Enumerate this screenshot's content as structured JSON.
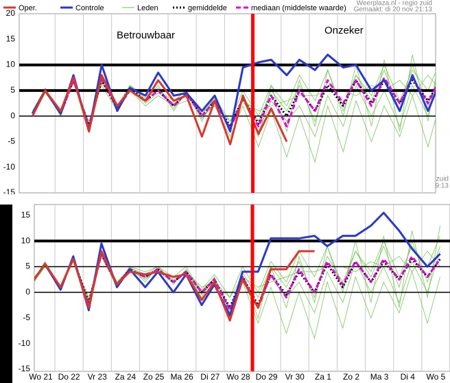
{
  "chart_data": [
    {
      "type": "line",
      "header": [
        "Weerplaza.nl - regio zuid",
        "Gemaakt: di 20 nov 21:13"
      ],
      "annotations": [
        "Betrouwbaar",
        "Onzeker"
      ],
      "legend": true,
      "x": [
        0.2,
        0.65,
        1.2,
        1.65,
        2.2,
        2.65,
        3.2,
        3.65,
        4.2,
        4.65,
        5.2,
        5.65,
        6.2,
        6.65,
        7.2,
        7.65,
        8.2,
        8.65,
        9.2,
        9.65,
        10.2,
        10.65,
        11.2,
        11.65,
        12.2,
        12.65,
        13.2,
        13.65,
        14.2,
        14.65
      ],
      "xlim": [
        -0.27,
        14.47
      ],
      "xgrid": [
        1,
        2,
        3,
        4,
        5,
        6,
        7,
        8,
        9,
        10,
        11,
        12,
        13,
        14
      ],
      "ylim": [
        -15,
        20
      ],
      "yticks": [
        20,
        15,
        10,
        5,
        0,
        -5,
        -10,
        -15
      ],
      "hlines": [
        10,
        5,
        0
      ],
      "bold_hlines": [
        10,
        5
      ],
      "vline": 8,
      "vline_color": "#ff0000",
      "members": {
        "name": "Leden",
        "color": "#6cbf4a",
        "values": [
          [
            1,
            5.5,
            0,
            7,
            -3,
            7,
            2,
            6,
            3,
            6,
            1,
            5,
            -1,
            4,
            -3,
            4,
            -4,
            6,
            -3,
            7,
            -2,
            9,
            0,
            10,
            -2,
            11,
            -3,
            12,
            -1,
            13
          ],
          [
            0,
            4.5,
            1,
            6.5,
            -1,
            6,
            1,
            5,
            2,
            4,
            2,
            3,
            1,
            2,
            -1,
            3,
            1,
            2,
            3,
            4,
            4,
            5,
            5,
            4,
            6,
            5,
            7,
            4,
            8,
            5
          ],
          [
            0.5,
            5,
            0,
            7.5,
            -2.5,
            8,
            1,
            6,
            4,
            5,
            3,
            5,
            0,
            2,
            -4,
            2,
            -6,
            1,
            -8,
            0,
            -9,
            2,
            -7,
            3,
            -5,
            2,
            -4,
            4,
            -6,
            3
          ],
          [
            0,
            4.8,
            0.8,
            6.8,
            -1.5,
            6.5,
            2,
            5.2,
            2.5,
            4.5,
            2.5,
            4,
            0.5,
            3.5,
            -1,
            5,
            0,
            6,
            2,
            8,
            3,
            9,
            1,
            8,
            4,
            10,
            3,
            9,
            5,
            11
          ],
          [
            1,
            5.2,
            0.2,
            7.2,
            -2,
            7.2,
            1.2,
            5.8,
            3.5,
            5.5,
            1.5,
            4.8,
            -0.5,
            2.5,
            -2,
            3,
            -3,
            3,
            -1,
            2,
            -4,
            4,
            -2,
            6,
            0,
            5,
            -2,
            6,
            0,
            8
          ],
          [
            0.5,
            5,
            0.6,
            7,
            -2.2,
            6.8,
            1.8,
            5.4,
            2.8,
            5.2,
            2.2,
            4.4,
            0.2,
            3.2,
            -2.5,
            3.8,
            -1,
            5,
            1,
            6,
            -1,
            7,
            2,
            8,
            3,
            9,
            1,
            10,
            2,
            9
          ]
        ]
      },
      "series": [
        {
          "name": "Oper.",
          "color": "#d8382c",
          "style": "solid",
          "values": [
            0,
            5,
            1,
            7.5,
            -3,
            8,
            2,
            5,
            3,
            7,
            3,
            4,
            -4,
            3,
            -5.5,
            4,
            -3.5,
            1.5,
            -5,
            null,
            null,
            null,
            null,
            null,
            null,
            null,
            null,
            null,
            null,
            null
          ]
        },
        {
          "name": "Controle",
          "color": "#2a38cc",
          "style": "solid",
          "values": [
            0.5,
            5,
            0.5,
            8,
            -3,
            10,
            1,
            5.5,
            4,
            8.5,
            4,
            4.5,
            1,
            4,
            -3,
            9.5,
            10.5,
            11,
            8,
            11,
            9,
            12,
            9.5,
            10,
            5,
            7,
            1,
            8,
            1,
            7
          ]
        },
        {
          "name": "gemiddelde",
          "color": "#000000",
          "style": "dotted",
          "values": [
            0.5,
            5,
            0.5,
            7,
            -2,
            7,
            1.5,
            5.5,
            3,
            5,
            2,
            4.5,
            0,
            3,
            -2,
            3.5,
            -1.5,
            4,
            0,
            5,
            1,
            6,
            2,
            7,
            2.5,
            7,
            2.5,
            7,
            3,
            7
          ]
        },
        {
          "name": "mediaan (middelste waarde)",
          "color": "#e000e0",
          "style": "dashed",
          "values": [
            0.5,
            5,
            0.5,
            7,
            -2,
            7.5,
            1.5,
            5,
            3,
            5,
            2,
            4.5,
            0,
            3,
            -2.5,
            3.5,
            -2,
            4,
            -2,
            5,
            1,
            7,
            2.5,
            7,
            2,
            7.5,
            2.5,
            7.5,
            2.5,
            7.5
          ]
        }
      ]
    },
    {
      "type": "line",
      "header": [
        "zuid",
        "9:13"
      ],
      "legend": false,
      "x": [
        0.2,
        0.65,
        1.2,
        1.65,
        2.2,
        2.65,
        3.2,
        3.65,
        4.2,
        4.65,
        5.2,
        5.65,
        6.2,
        6.65,
        7.2,
        7.65,
        8.2,
        8.65,
        9.2,
        9.65,
        10.2,
        10.65,
        11.2,
        11.65,
        12.2,
        12.65,
        13.2,
        13.65,
        14.2,
        14.65
      ],
      "xlim": [
        0.27,
        15
      ],
      "xgrid": [
        1,
        2,
        3,
        4,
        5,
        6,
        7,
        8,
        9,
        10,
        11,
        12,
        13,
        14
      ],
      "xticks": [
        {
          "value": 0.5,
          "label": "Wo 21"
        },
        {
          "value": 1.5,
          "label": "Do 22"
        },
        {
          "value": 2.5,
          "label": "Vr 23"
        },
        {
          "value": 3.5,
          "label": "Za 24"
        },
        {
          "value": 4.5,
          "label": "Zo 25"
        },
        {
          "value": 5.5,
          "label": "Ma 26"
        },
        {
          "value": 6.5,
          "label": "Di 27"
        },
        {
          "value": 7.5,
          "label": "Wo 28"
        },
        {
          "value": 8.5,
          "label": "Do 29"
        },
        {
          "value": 9.5,
          "label": "Vr 30"
        },
        {
          "value": 10.5,
          "label": "Za 1"
        },
        {
          "value": 11.5,
          "label": "Zo 2"
        },
        {
          "value": 12.5,
          "label": "Ma 3"
        },
        {
          "value": 13.5,
          "label": "Di 4"
        },
        {
          "value": 14.5,
          "label": "Wo 5"
        }
      ],
      "ylim": [
        -15.4,
        17.1
      ],
      "yticks": [
        15,
        10,
        5,
        0,
        -5,
        -10,
        -15
      ],
      "hlines": [
        10,
        5,
        0
      ],
      "bold_hlines": [
        10
      ],
      "vline": 8,
      "vline_color": "#ff0000",
      "members": {
        "name": "Leden",
        "color": "#6cbf4a",
        "values": [
          [
            2,
            6,
            1,
            6.5,
            -2,
            8,
            2,
            4,
            3,
            4,
            2,
            4,
            -1,
            3,
            -4,
            3,
            -5,
            5,
            -3,
            7,
            -2,
            9,
            0,
            10,
            -2,
            11,
            -3,
            12,
            -1,
            13
          ],
          [
            2,
            5,
            1,
            6,
            -1,
            7,
            1,
            5,
            2,
            5,
            2,
            4,
            1,
            2,
            -1,
            3,
            1,
            2,
            3,
            4,
            4,
            5,
            5,
            4,
            6,
            5,
            7,
            4,
            8,
            5
          ],
          [
            2.5,
            5.5,
            0.5,
            7,
            -3,
            8,
            1,
            5,
            4,
            5,
            3,
            5,
            0,
            2,
            -5,
            2,
            -6,
            1,
            -8,
            0,
            -9,
            2,
            -7,
            3,
            -5,
            2,
            -4,
            4,
            -6,
            3
          ],
          [
            1.5,
            5,
            1,
            6.5,
            -1.5,
            7,
            2,
            4.5,
            2.5,
            4.5,
            2.5,
            4,
            0.5,
            3.5,
            -1,
            5,
            0,
            6,
            2,
            8,
            3,
            9,
            1,
            8,
            4,
            10,
            3,
            9,
            5,
            11
          ],
          [
            2,
            5.8,
            0.5,
            7,
            -2,
            7.5,
            1.2,
            4.8,
            3.5,
            5,
            1.5,
            4.5,
            -0.5,
            2.5,
            -3,
            3,
            -3,
            3,
            -1,
            2,
            -4,
            4,
            -2,
            6,
            0,
            5,
            -2,
            6,
            0,
            8
          ],
          [
            1.8,
            5.2,
            0.8,
            6.8,
            -2.2,
            7.2,
            1.8,
            4.4,
            2.8,
            4.2,
            2.2,
            3.8,
            0.2,
            2.8,
            -3.5,
            3.8,
            -1,
            5,
            1,
            6,
            -1,
            7,
            2,
            8,
            3,
            9,
            1,
            10,
            2,
            9
          ]
        ]
      },
      "series": [
        {
          "name": "Oper.",
          "color": "#d8382c",
          "style": "solid",
          "values": [
            2,
            5.5,
            1,
            6.5,
            -3,
            8,
            1.5,
            4,
            3.5,
            4,
            3,
            3.5,
            -1.5,
            2,
            -5.5,
            2.5,
            -3,
            4.5,
            4.5,
            8,
            8,
            null,
            null,
            null,
            null,
            null,
            null,
            null,
            null,
            null
          ]
        },
        {
          "name": "Controle",
          "color": "#2a38cc",
          "style": "solid",
          "values": [
            2,
            5.5,
            0.5,
            7,
            -3.5,
            9.5,
            1,
            4.5,
            1,
            4,
            0,
            3.5,
            -2.5,
            1.5,
            -4.5,
            4,
            4,
            10.5,
            10.5,
            10.5,
            11,
            9,
            11,
            11,
            13,
            15.5,
            12,
            8.5,
            5,
            7.5
          ]
        },
        {
          "name": "gemiddelde",
          "color": "#000000",
          "style": "dotted",
          "values": [
            2,
            5.5,
            1,
            6.5,
            -2,
            7.5,
            1.5,
            4.5,
            3,
            4.5,
            2,
            4,
            0,
            2.5,
            -3,
            3,
            -2.5,
            3.5,
            -0.5,
            4,
            0,
            5.5,
            1,
            6,
            2,
            6,
            2.5,
            6.5,
            3,
            6.5
          ]
        },
        {
          "name": "mediaan (middelste waarde)",
          "color": "#e000e0",
          "style": "dashed",
          "values": [
            2,
            5.5,
            1,
            6.5,
            -2.5,
            7.5,
            1.5,
            4.5,
            3,
            4.5,
            2,
            4,
            0,
            2.5,
            -3.5,
            3,
            -3,
            3.5,
            -1,
            4.5,
            0,
            6,
            1.5,
            6,
            2,
            6.5,
            2.5,
            7,
            3,
            6.5
          ]
        }
      ]
    }
  ]
}
